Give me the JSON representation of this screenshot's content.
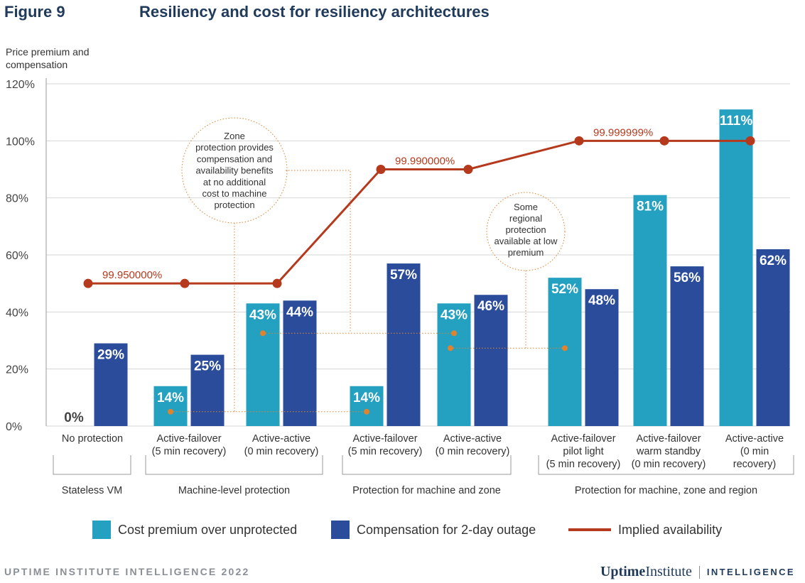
{
  "figure": {
    "label": "Figure 9",
    "title": "Resiliency and cost for resiliency architectures"
  },
  "chart_data": {
    "type": "bar",
    "ylabel": "Price premium and compensation",
    "ylim": [
      0,
      120
    ],
    "yticks": [
      "0%",
      "20%",
      "40%",
      "60%",
      "80%",
      "100%",
      "120%"
    ],
    "grid": true,
    "categories": [
      [
        "No protection"
      ],
      [
        "Active-failover",
        "(5 min recovery)"
      ],
      [
        "Active-active",
        "(0 min recovery)"
      ],
      [
        "Active-failover",
        "(5 min recovery)"
      ],
      [
        "Active-active",
        "(0 min recovery)"
      ],
      [
        "Active-failover",
        "pilot light",
        "(5 min recovery)"
      ],
      [
        "Active-failover",
        "warm standby",
        "(0 min recovery)"
      ],
      [
        "Active-active",
        "(0 min",
        "recovery)"
      ]
    ],
    "groups": [
      {
        "label": "Stateless VM",
        "categories": [
          0
        ]
      },
      {
        "label": "Machine-level protection",
        "categories": [
          1,
          2
        ]
      },
      {
        "label": "Protection for machine and  zone",
        "categories": [
          3,
          4
        ]
      },
      {
        "label": "Protection for machine, zone and region",
        "categories": [
          5,
          6,
          7
        ]
      }
    ],
    "series": [
      {
        "name": "Cost premium over unprotected",
        "color": "#24a0c0",
        "values": [
          0,
          14,
          43,
          14,
          43,
          52,
          81,
          111
        ],
        "labels": [
          "0%",
          "14%",
          "43%",
          "14%",
          "43%",
          "52%",
          "81%",
          "111%"
        ]
      },
      {
        "name": "Compensation for 2-day outage",
        "color": "#2b4c9a",
        "values": [
          29,
          25,
          44,
          57,
          46,
          48,
          56,
          62
        ],
        "labels": [
          "29%",
          "25%",
          "44%",
          "57%",
          "46%",
          "48%",
          "56%",
          "62%"
        ]
      }
    ],
    "line": {
      "name": "Implied availability",
      "color": "#b5391d",
      "plot_values": [
        50,
        50,
        50,
        90,
        90,
        100,
        100,
        100
      ],
      "annotations": [
        {
          "text": "99.950000%",
          "category": 0
        },
        {
          "text": "99.990000%",
          "category": 3
        },
        {
          "text": "99.999999%",
          "category": 5
        }
      ]
    },
    "callouts": [
      {
        "lines": [
          "Zone",
          "protection provides",
          "compensation and",
          "availability benefits",
          "at no additional",
          "cost to machine",
          "protection"
        ],
        "links": [
          [
            1,
            3,
            14
          ],
          [
            2,
            4,
            43
          ]
        ]
      },
      {
        "lines": [
          "Some",
          "regional",
          "protection",
          "available at low",
          "premium"
        ],
        "links": [
          [
            4,
            5,
            43
          ]
        ]
      }
    ],
    "legend_position": "bottom"
  },
  "footer": {
    "left": "UPTIME INSTITUTE INTELLIGENCE 2022",
    "brand_bold": "Uptime",
    "brand_regular": "Institute",
    "brand_right": "INTELLIGENCE"
  }
}
